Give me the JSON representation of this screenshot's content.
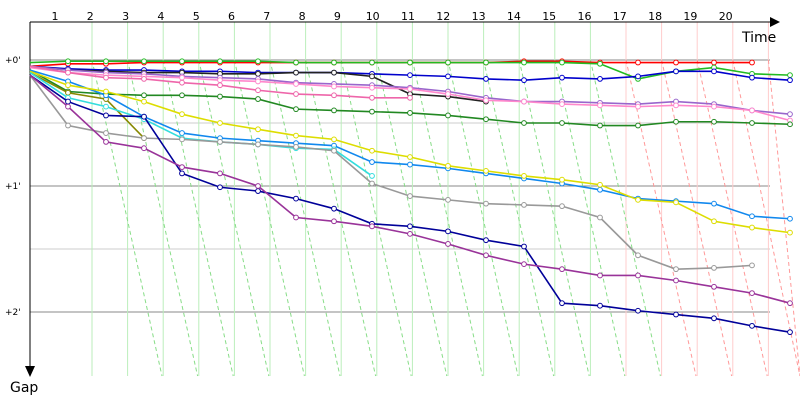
{
  "chart_data": {
    "type": "line",
    "x_axis_title": "Time",
    "y_axis_title": "Gap",
    "laps": [
      1,
      2,
      3,
      4,
      5,
      6,
      7,
      8,
      9,
      10,
      11,
      12,
      13,
      14,
      15,
      16,
      17,
      18,
      19,
      20
    ],
    "y_labels": [
      {
        "text": "+0'",
        "value": 0
      },
      {
        "text": "+1'",
        "value": 1
      },
      {
        "text": "+2'",
        "value": 2
      }
    ],
    "grid": true,
    "series": [
      {
        "color": "#ff0000",
        "points": [
          [
            0,
            0.05
          ],
          [
            2,
            0.03
          ],
          [
            4,
            0.03
          ],
          [
            6,
            0.02
          ],
          [
            8,
            0.02
          ],
          [
            10,
            0.02
          ],
          [
            12,
            0.02
          ],
          [
            14,
            0.02
          ],
          [
            16,
            0.02
          ],
          [
            18,
            0.02
          ],
          [
            20,
            0.02
          ],
          [
            22,
            0.02
          ],
          [
            24,
            0.02
          ],
          [
            26,
            0.01
          ],
          [
            28,
            0.01
          ],
          [
            30,
            0.02
          ],
          [
            32,
            0.02
          ],
          [
            34,
            0.02
          ],
          [
            36,
            0.02
          ],
          [
            38,
            0.02
          ]
        ]
      },
      {
        "color": "#22bb22",
        "points": [
          [
            0,
            0.02
          ],
          [
            2,
            0.01
          ],
          [
            4,
            0.01
          ],
          [
            6,
            0.01
          ],
          [
            8,
            0.01
          ],
          [
            10,
            0.01
          ],
          [
            12,
            0.01
          ],
          [
            14,
            0.02
          ],
          [
            16,
            0.02
          ],
          [
            18,
            0.02
          ],
          [
            20,
            0.02
          ],
          [
            22,
            0.02
          ],
          [
            24,
            0.02
          ],
          [
            26,
            0.02
          ],
          [
            28,
            0.02
          ],
          [
            30,
            0.03
          ],
          [
            32,
            0.15
          ],
          [
            34,
            0.09
          ],
          [
            36,
            0.06
          ],
          [
            38,
            0.11
          ],
          [
            40,
            0.12
          ]
        ]
      },
      {
        "color": "#0000cc",
        "points": [
          [
            0,
            0.05
          ],
          [
            2,
            0.07
          ],
          [
            4,
            0.08
          ],
          [
            6,
            0.08
          ],
          [
            8,
            0.09
          ],
          [
            10,
            0.09
          ],
          [
            12,
            0.1
          ],
          [
            14,
            0.1
          ],
          [
            16,
            0.1
          ],
          [
            18,
            0.11
          ],
          [
            20,
            0.12
          ],
          [
            22,
            0.13
          ],
          [
            24,
            0.15
          ],
          [
            26,
            0.16
          ],
          [
            28,
            0.14
          ],
          [
            30,
            0.15
          ],
          [
            32,
            0.13
          ],
          [
            34,
            0.09
          ],
          [
            36,
            0.09
          ],
          [
            38,
            0.14
          ],
          [
            40,
            0.16
          ]
        ]
      },
      {
        "color": "#222222",
        "points": [
          [
            0,
            0.05
          ],
          [
            2,
            0.08
          ],
          [
            4,
            0.09
          ],
          [
            6,
            0.1
          ],
          [
            8,
            0.1
          ],
          [
            10,
            0.11
          ],
          [
            12,
            0.11
          ],
          [
            14,
            0.1
          ],
          [
            16,
            0.1
          ],
          [
            18,
            0.13
          ],
          [
            20,
            0.27
          ],
          [
            22,
            0.29
          ],
          [
            24,
            0.33
          ]
        ]
      },
      {
        "color": "#9966cc",
        "points": [
          [
            0,
            0.05
          ],
          [
            2,
            0.08
          ],
          [
            4,
            0.1
          ],
          [
            6,
            0.11
          ],
          [
            8,
            0.13
          ],
          [
            10,
            0.14
          ],
          [
            12,
            0.15
          ],
          [
            14,
            0.18
          ],
          [
            16,
            0.19
          ],
          [
            18,
            0.2
          ],
          [
            20,
            0.22
          ],
          [
            22,
            0.25
          ],
          [
            24,
            0.3
          ],
          [
            26,
            0.33
          ],
          [
            28,
            0.33
          ],
          [
            30,
            0.34
          ],
          [
            32,
            0.35
          ],
          [
            34,
            0.33
          ],
          [
            36,
            0.35
          ],
          [
            38,
            0.4
          ],
          [
            40,
            0.43
          ]
        ]
      },
      {
        "color": "#ff88cc",
        "points": [
          [
            0,
            0.06
          ],
          [
            2,
            0.1
          ],
          [
            4,
            0.12
          ],
          [
            6,
            0.13
          ],
          [
            8,
            0.14
          ],
          [
            10,
            0.16
          ],
          [
            12,
            0.17
          ],
          [
            14,
            0.19
          ],
          [
            16,
            0.21
          ],
          [
            18,
            0.22
          ],
          [
            20,
            0.23
          ],
          [
            22,
            0.27
          ],
          [
            24,
            0.32
          ],
          [
            26,
            0.33
          ],
          [
            28,
            0.35
          ],
          [
            30,
            0.36
          ],
          [
            32,
            0.37
          ],
          [
            34,
            0.36
          ],
          [
            36,
            0.37
          ],
          [
            38,
            0.4
          ],
          [
            40,
            0.48
          ]
        ]
      },
      {
        "color": "#ee66aa",
        "points": [
          [
            0,
            0.05
          ],
          [
            2,
            0.1
          ],
          [
            4,
            0.14
          ],
          [
            6,
            0.15
          ],
          [
            8,
            0.18
          ],
          [
            10,
            0.2
          ],
          [
            12,
            0.24
          ],
          [
            14,
            0.27
          ],
          [
            16,
            0.28
          ],
          [
            18,
            0.3
          ],
          [
            20,
            0.3
          ]
        ]
      },
      {
        "color": "#228822",
        "points": [
          [
            0,
            0.08
          ],
          [
            2,
            0.25
          ],
          [
            4,
            0.27
          ],
          [
            6,
            0.28
          ],
          [
            8,
            0.28
          ],
          [
            10,
            0.29
          ],
          [
            12,
            0.31
          ],
          [
            14,
            0.39
          ],
          [
            16,
            0.4
          ],
          [
            18,
            0.41
          ],
          [
            20,
            0.42
          ],
          [
            22,
            0.44
          ],
          [
            24,
            0.47
          ],
          [
            26,
            0.5
          ],
          [
            28,
            0.5
          ],
          [
            30,
            0.52
          ],
          [
            32,
            0.52
          ],
          [
            34,
            0.49
          ],
          [
            36,
            0.49
          ],
          [
            38,
            0.5
          ],
          [
            40,
            0.51
          ]
        ]
      },
      {
        "color": "#888800",
        "points": [
          [
            0,
            0.1
          ],
          [
            2,
            0.26
          ],
          [
            4,
            0.31
          ],
          [
            6,
            0.62
          ]
        ]
      },
      {
        "color": "#1188ee",
        "points": [
          [
            0,
            0.08
          ],
          [
            2,
            0.17
          ],
          [
            4,
            0.28
          ],
          [
            6,
            0.45
          ],
          [
            8,
            0.58
          ],
          [
            10,
            0.62
          ],
          [
            12,
            0.64
          ],
          [
            14,
            0.66
          ],
          [
            16,
            0.68
          ],
          [
            18,
            0.81
          ],
          [
            20,
            0.83
          ],
          [
            22,
            0.86
          ],
          [
            24,
            0.9
          ],
          [
            26,
            0.94
          ],
          [
            28,
            0.98
          ],
          [
            30,
            1.03
          ],
          [
            32,
            1.1
          ],
          [
            34,
            1.12
          ],
          [
            36,
            1.14
          ],
          [
            38,
            1.24
          ],
          [
            40,
            1.26
          ]
        ]
      },
      {
        "color": "#dddd00",
        "points": [
          [
            0,
            0.09
          ],
          [
            2,
            0.2
          ],
          [
            4,
            0.25
          ],
          [
            6,
            0.33
          ],
          [
            8,
            0.43
          ],
          [
            10,
            0.5
          ],
          [
            12,
            0.55
          ],
          [
            14,
            0.6
          ],
          [
            16,
            0.63
          ],
          [
            18,
            0.72
          ],
          [
            20,
            0.77
          ],
          [
            22,
            0.84
          ],
          [
            24,
            0.88
          ],
          [
            26,
            0.92
          ],
          [
            28,
            0.95
          ],
          [
            30,
            0.99
          ],
          [
            32,
            1.11
          ],
          [
            34,
            1.13
          ],
          [
            36,
            1.28
          ],
          [
            38,
            1.33
          ],
          [
            40,
            1.37
          ]
        ]
      },
      {
        "color": "#33dddd",
        "points": [
          [
            0,
            0.1
          ],
          [
            2,
            0.3
          ],
          [
            4,
            0.37
          ],
          [
            6,
            0.47
          ],
          [
            8,
            0.62
          ],
          [
            10,
            0.65
          ],
          [
            12,
            0.67
          ],
          [
            14,
            0.7
          ],
          [
            16,
            0.71
          ],
          [
            18,
            0.92
          ]
        ]
      },
      {
        "color": "#999999",
        "points": [
          [
            0,
            0.12
          ],
          [
            2,
            0.52
          ],
          [
            4,
            0.58
          ],
          [
            6,
            0.62
          ],
          [
            8,
            0.63
          ],
          [
            10,
            0.65
          ],
          [
            12,
            0.67
          ],
          [
            14,
            0.69
          ],
          [
            16,
            0.72
          ],
          [
            18,
            0.98
          ],
          [
            20,
            1.08
          ],
          [
            22,
            1.11
          ],
          [
            24,
            1.14
          ],
          [
            26,
            1.15
          ],
          [
            28,
            1.16
          ],
          [
            30,
            1.25
          ],
          [
            32,
            1.55
          ],
          [
            34,
            1.66
          ],
          [
            36,
            1.65
          ],
          [
            38,
            1.63
          ]
        ]
      },
      {
        "color": "#000099",
        "points": [
          [
            0,
            0.12
          ],
          [
            2,
            0.33
          ],
          [
            4,
            0.44
          ],
          [
            6,
            0.45
          ],
          [
            8,
            0.9
          ],
          [
            10,
            1.01
          ],
          [
            12,
            1.04
          ],
          [
            14,
            1.1
          ],
          [
            16,
            1.18
          ],
          [
            18,
            1.3
          ],
          [
            20,
            1.32
          ],
          [
            22,
            1.36
          ],
          [
            24,
            1.43
          ],
          [
            26,
            1.48
          ],
          [
            28,
            1.93
          ],
          [
            30,
            1.95
          ],
          [
            32,
            1.99
          ],
          [
            34,
            2.02
          ],
          [
            36,
            2.05
          ],
          [
            38,
            2.11
          ],
          [
            40,
            2.16
          ]
        ]
      },
      {
        "color": "#993399",
        "points": [
          [
            0,
            0.12
          ],
          [
            2,
            0.37
          ],
          [
            4,
            0.65
          ],
          [
            6,
            0.7
          ],
          [
            8,
            0.85
          ],
          [
            10,
            0.9
          ],
          [
            12,
            1.0
          ],
          [
            14,
            1.25
          ],
          [
            16,
            1.28
          ],
          [
            18,
            1.32
          ],
          [
            20,
            1.38
          ],
          [
            22,
            1.46
          ],
          [
            24,
            1.55
          ],
          [
            26,
            1.62
          ],
          [
            28,
            1.66
          ],
          [
            30,
            1.71
          ],
          [
            32,
            1.71
          ],
          [
            34,
            1.75
          ],
          [
            36,
            1.8
          ],
          [
            38,
            1.85
          ],
          [
            40,
            1.93
          ]
        ]
      }
    ],
    "pit_stop_color_early": "#88dd88",
    "pit_stop_color_late": "#ff9999"
  }
}
